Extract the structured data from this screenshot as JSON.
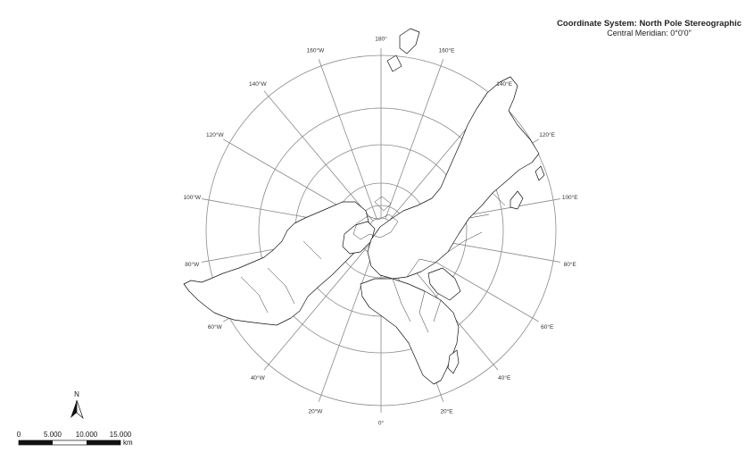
{
  "title": {
    "line1": "Coordinate System: North Pole Stereographic",
    "line2": "Central Meridian: 0°0'0\""
  },
  "meridian_labels": [
    {
      "text": "180°",
      "deg": 180
    },
    {
      "text": "160°E",
      "deg": 160
    },
    {
      "text": "140°E",
      "deg": 140
    },
    {
      "text": "120°E",
      "deg": 120
    },
    {
      "text": "100°E",
      "deg": 100
    },
    {
      "text": "80°E",
      "deg": 80
    },
    {
      "text": "60°E",
      "deg": 60
    },
    {
      "text": "40°E",
      "deg": 40
    },
    {
      "text": "20°E",
      "deg": 20
    },
    {
      "text": "0°",
      "deg": 0
    },
    {
      "text": "20°W",
      "deg": -20
    },
    {
      "text": "40°W",
      "deg": -40
    },
    {
      "text": "60°W",
      "deg": -60
    },
    {
      "text": "80°W",
      "deg": -80
    },
    {
      "text": "100°W",
      "deg": -100
    },
    {
      "text": "120°W",
      "deg": -120
    },
    {
      "text": "140°W",
      "deg": -140
    },
    {
      "text": "160°W",
      "deg": -160
    }
  ],
  "north_arrow": {
    "label": "N"
  },
  "scale_bar": {
    "ticks": [
      "0",
      "5.000",
      "10.000",
      "15.000"
    ],
    "unit": "km"
  }
}
